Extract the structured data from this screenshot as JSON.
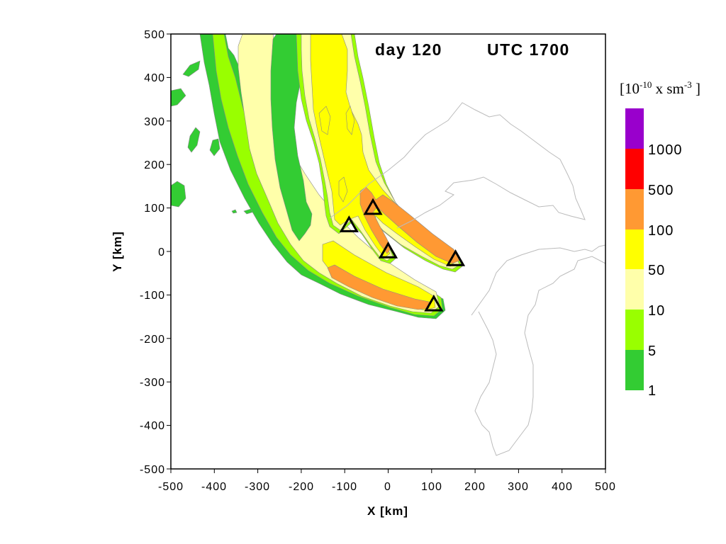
{
  "title": {
    "day": "day 120",
    "time": "UTC 1700"
  },
  "x_axis": {
    "label": "X [km]",
    "ticks": [
      "-500",
      "-400",
      "-300",
      "-200",
      "-100",
      "0",
      "100",
      "200",
      "300",
      "400",
      "500"
    ]
  },
  "y_axis": {
    "label": "Y [km]",
    "ticks": [
      "500",
      "400",
      "300",
      "200",
      "100",
      "0",
      "-100",
      "-200",
      "-300",
      "-400",
      "-500"
    ]
  },
  "legend": {
    "unit": {
      "base": "[10",
      "exp1": "-10",
      "mid": " x sm",
      "exp2": "-3",
      "end": " ]"
    },
    "bins": [
      {
        "color": "#33cc33",
        "label": "1"
      },
      {
        "color": "#99ff00",
        "label": "5"
      },
      {
        "color": "#ffffaa",
        "label": "10"
      },
      {
        "color": "#ffff00",
        "label": "50"
      },
      {
        "color": "#ff9933",
        "label": "100"
      },
      {
        "color": "#ff0000",
        "label": "500"
      },
      {
        "color": "#9900cc",
        "label": "1000"
      }
    ]
  },
  "chart_data": {
    "type": "contour",
    "x_range_km": [
      -500,
      500
    ],
    "y_range_km": [
      -500,
      500
    ],
    "sources": [
      {
        "x": 105,
        "y": -122
      },
      {
        "x": -90,
        "y": 60
      },
      {
        "x": -35,
        "y": 100
      },
      {
        "x": 0,
        "y": 0
      },
      {
        "x": 155,
        "y": -18
      }
    ],
    "colors": {
      "frame": "#000000",
      "coastline": "#bbbbbb",
      "source_marker": "#000000"
    }
  }
}
